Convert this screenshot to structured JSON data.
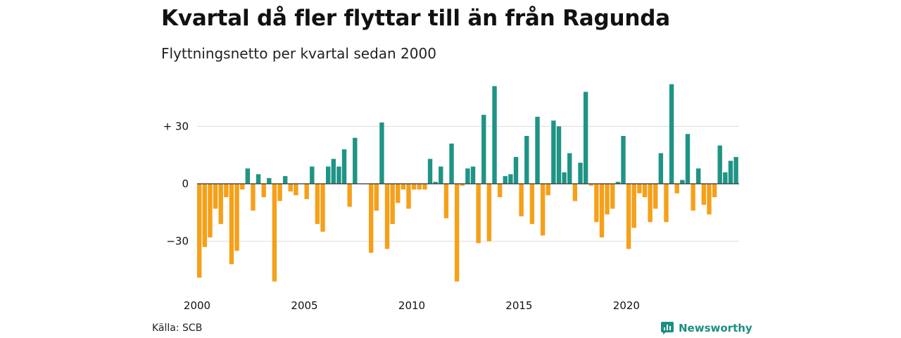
{
  "header": {
    "title": "Kvartal då fler flyttar till än från Ragunda",
    "subtitle": "Flyttningsnetto per kvartal sedan 2000"
  },
  "footer": {
    "source": "Källa: SCB",
    "brand": "Newsworthy",
    "brand_icon": "newsworthy-logo-icon"
  },
  "colors": {
    "positive": "#1f9486",
    "negative": "#f5a01a",
    "grid": "#dddddd",
    "zero_line": "#333333",
    "brand": "#1a8f82"
  },
  "chart_data": {
    "type": "bar",
    "title": "Kvartal då fler flyttar till än från Ragunda",
    "subtitle": "Flyttningsnetto per kvartal sedan 2000",
    "xlabel": "",
    "ylabel": "",
    "ylim": [
      -52,
      52
    ],
    "grid": true,
    "y_ticks": [
      {
        "value": 30,
        "label": "+ 30"
      },
      {
        "value": 0,
        "label": "0"
      },
      {
        "value": -30,
        "label": "−30"
      }
    ],
    "x_ticks": [
      {
        "index": 0,
        "label": "2000"
      },
      {
        "index": 20,
        "label": "2005"
      },
      {
        "index": 40,
        "label": "2010"
      },
      {
        "index": 60,
        "label": "2015"
      },
      {
        "index": 80,
        "label": "2020"
      }
    ],
    "start_year": 2000,
    "values": [
      -49,
      -33,
      -28,
      -13,
      -21,
      -7,
      -42,
      -35,
      -3,
      8,
      -14,
      5,
      -7,
      3,
      -51,
      -9,
      4,
      -4,
      -6,
      0,
      -8,
      9,
      -21,
      -25,
      9,
      13,
      9,
      18,
      -12,
      24,
      0,
      0,
      -36,
      -14,
      32,
      -34,
      -21,
      -10,
      -3,
      -13,
      -3,
      -3,
      -3,
      13,
      1,
      9,
      -18,
      21,
      -51,
      -1,
      8,
      9,
      -31,
      36,
      -30,
      51,
      -7,
      4,
      5,
      14,
      -17,
      25,
      -21,
      35,
      -27,
      -6,
      33,
      30,
      6,
      16,
      -9,
      11,
      48,
      -1,
      -20,
      -28,
      -16,
      -13,
      1,
      25,
      -34,
      -23,
      -5,
      -7,
      -20,
      -13,
      16,
      -20,
      52,
      -5,
      2,
      26,
      -14,
      8,
      -11,
      -16,
      -7,
      20,
      6,
      12,
      14
    ]
  }
}
